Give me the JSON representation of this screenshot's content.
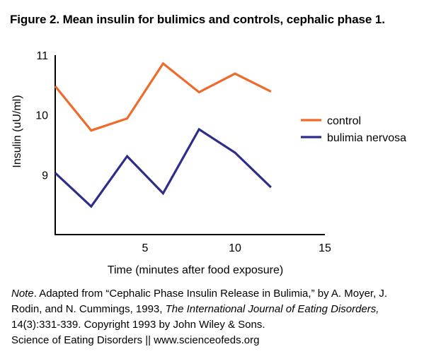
{
  "figure": {
    "title": "Figure 2. Mean insulin for bulimics and controls, cephalic phase 1."
  },
  "chart_data": {
    "type": "line",
    "title": "Figure 2. Mean insulin for bulimics and controls, cephalic phase 1.",
    "xlabel": "Time (minutes after food exposure)",
    "ylabel": "Insulin (uU/ml)",
    "xlim": [
      0,
      15
    ],
    "ylim": [
      8,
      11
    ],
    "x_ticks": [
      5,
      10,
      15
    ],
    "y_ticks": [
      9,
      10,
      11
    ],
    "grid": false,
    "legend_position": "right",
    "x": [
      0,
      2,
      4,
      6,
      8,
      10,
      12
    ],
    "series": [
      {
        "name": "control",
        "color": "#EE6B2B",
        "values": [
          10.48,
          9.74,
          9.94,
          10.86,
          10.38,
          10.69,
          10.39
        ]
      },
      {
        "name": "bulimia nervosa",
        "color": "#2E2D8A",
        "values": [
          9.03,
          8.47,
          9.31,
          8.69,
          9.76,
          9.37,
          8.79
        ]
      }
    ]
  },
  "note": {
    "label": "Note",
    "text1": ". Adapted from “Cephalic Phase Insulin Release in Bulimia,” by A. Moyer, J. Rodin, and N. Cummings, 1993, ",
    "journal": "The International Journal of Eating Disorders,",
    "text2": " 14(3):331-339. Copyright 1993 by John Wiley & Sons."
  },
  "credit": {
    "text": "Science of Eating Disorders || www.scienceofeds.org"
  }
}
